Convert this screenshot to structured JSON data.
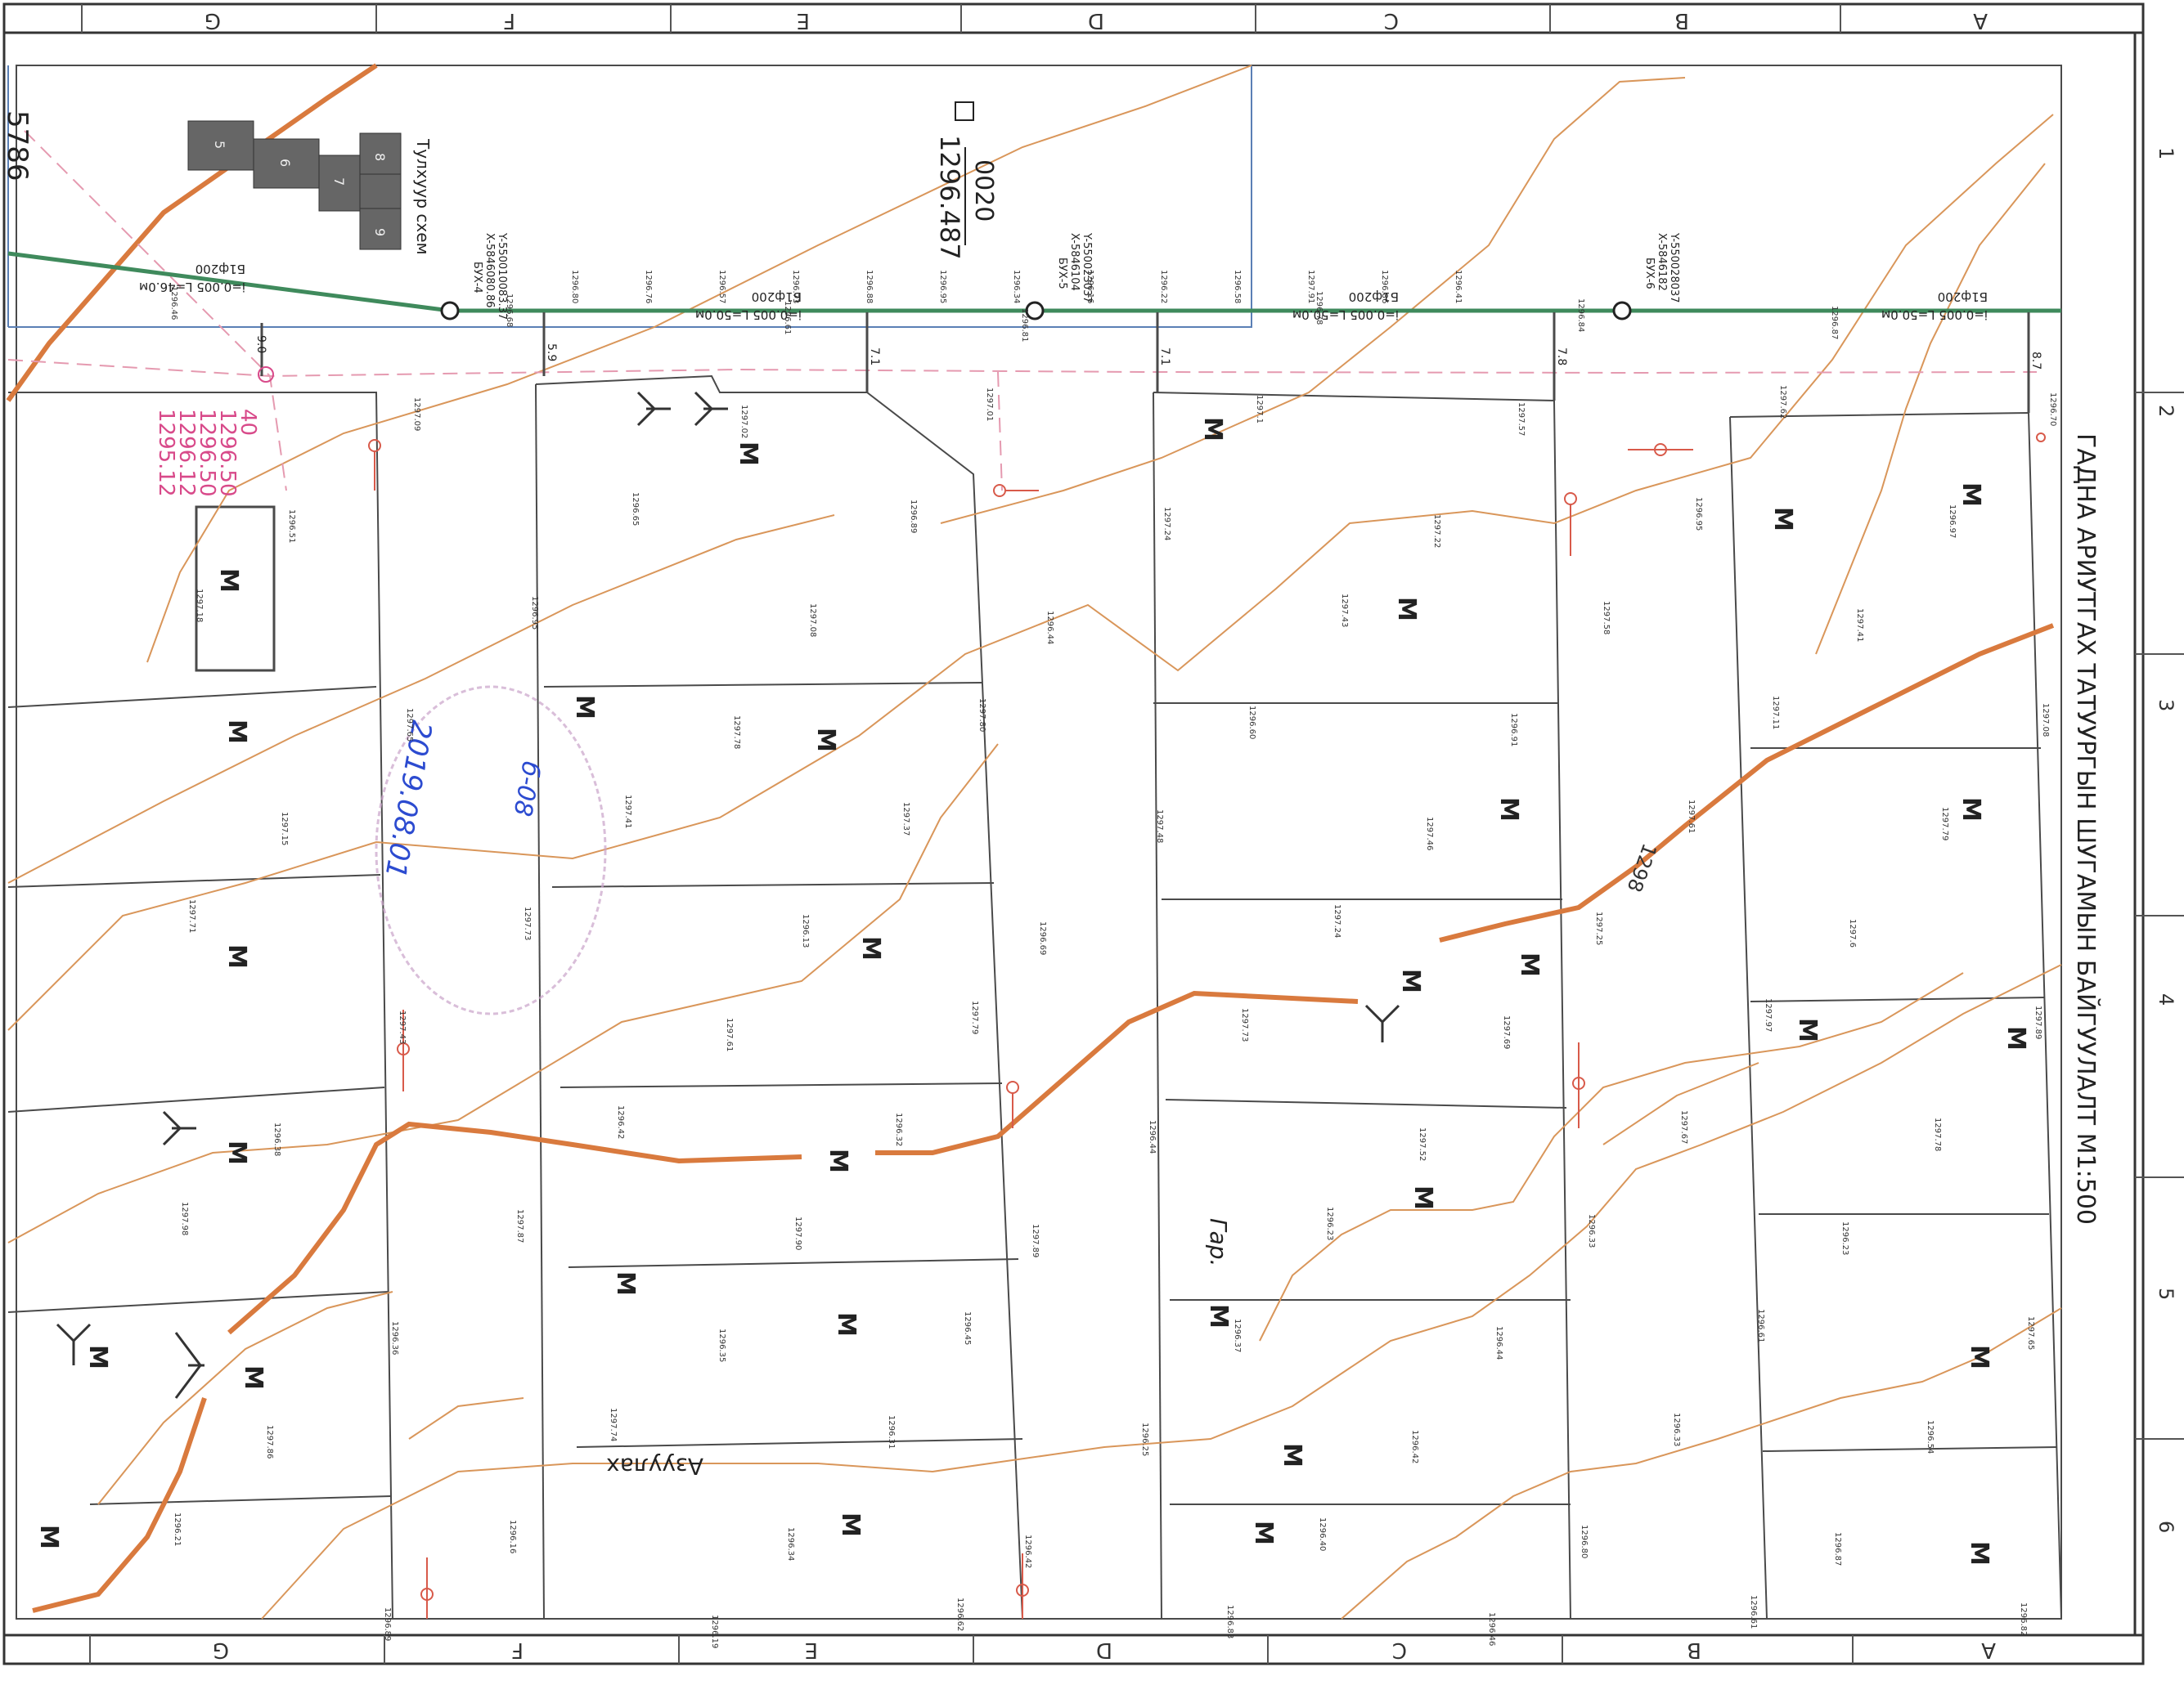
{
  "title": "ГАДНА АРИУТГАХ ТАТУУРГЫН ШУГАМЫН БАЙГУУЛАЛТ М1:500",
  "grid": {
    "letters": [
      "G",
      "F",
      "E",
      "D",
      "C",
      "B",
      "A"
    ],
    "numbers": [
      "1",
      "2",
      "3",
      "4",
      "5",
      "6"
    ]
  },
  "header": {
    "code": "0020",
    "value": "1296.487"
  },
  "side_number": "5786",
  "schema_label": "Тулхуур схем",
  "schema_cells": [
    "5",
    "6",
    "7",
    "8",
    "9"
  ],
  "wells": [
    {
      "name": "БУХ-4",
      "x_coord": "X-5846080.86",
      "y_coord": "Y-550010083.37"
    },
    {
      "name": "БУХ-5",
      "x_coord": "X-5846104",
      "y_coord": "Y-550023037"
    },
    {
      "name": "БУХ-6",
      "x_coord": "X-5846182",
      "y_coord": "Y-550028037"
    }
  ],
  "pipes": [
    {
      "dia": "Б1ф200",
      "spec": "i=0.005 L=46.0м"
    },
    {
      "dia": "Б1ф200",
      "spec": "i=0.005 L=50.0м"
    },
    {
      "dia": "Б1ф200",
      "spec": "i=0.005 L=50.0м"
    },
    {
      "dia": "Б1ф200",
      "spec": "i=0.005 L=50.0м"
    }
  ],
  "offsets": [
    "9.0",
    "5.9",
    "7.1",
    "7.1",
    "7.8",
    "8.7"
  ],
  "pink_values": [
    "40",
    "1296.50",
    "1296.50",
    "1296.12",
    "1295.12"
  ],
  "contour_label": "1298",
  "street_label": "Азуулах",
  "garage_label": "Гар.",
  "m_label": "М",
  "stamp": {
    "line1": "б-08",
    "line2": "2019.08.01"
  },
  "elevations": [
    "1296.46",
    "1296.68",
    "1296.61",
    "1296.81",
    "1296.78",
    "1296.84",
    "1296.87",
    "1297.09",
    "1297.02",
    "1297.01",
    "1297.1",
    "1297.57",
    "1297.62",
    "1296.70",
    "1296.51",
    "1296.65",
    "1296.89",
    "1297.24",
    "1297.22",
    "1296.95",
    "1296.97",
    "1297.18",
    "1296.95",
    "1297.08",
    "1296.44",
    "1297.43",
    "1297.58",
    "1297.41",
    "1297.65",
    "1297.78",
    "1297.80",
    "1296.60",
    "1296.91",
    "1297.11",
    "1297.08",
    "1297.15",
    "1297.41",
    "1297.37",
    "1297.48",
    "1297.46",
    "1297.61",
    "1297.79",
    "1297.71",
    "1297.73",
    "1296.13",
    "1296.69",
    "1297.24",
    "1297.25",
    "1297.6",
    "1297.43",
    "1297.61",
    "1297.79",
    "1297.73",
    "1297.69",
    "1297.97",
    "1297.89",
    "1296.38",
    "1296.42",
    "1296.32",
    "1296.44",
    "1297.52",
    "1297.67",
    "1297.78",
    "1297.98",
    "1297.87",
    "1297.90",
    "1297.89",
    "1296.23",
    "1296.33",
    "1296.23",
    "1296.36",
    "1296.35",
    "1296.45",
    "1296.37",
    "1296.44",
    "1296.61",
    "1297.65",
    "1297.86",
    "1297.74",
    "1296.31",
    "1296.25",
    "1296.42",
    "1296.33",
    "1296.54",
    "1296.21",
    "1296.16",
    "1296.34",
    "1296.42",
    "1296.40",
    "1296.80",
    "1296.87",
    "1296.89",
    "1296.19",
    "1296.62",
    "1296.83",
    "1296.46",
    "1296.61",
    "1296.82",
    "1296.80",
    "1296.76",
    "1296.57",
    "1296.73",
    "1296.88",
    "1296.95",
    "1296.34",
    "1296.16",
    "1296.22",
    "1296.58",
    "1297.91",
    "1296.86",
    "1296.41"
  ]
}
